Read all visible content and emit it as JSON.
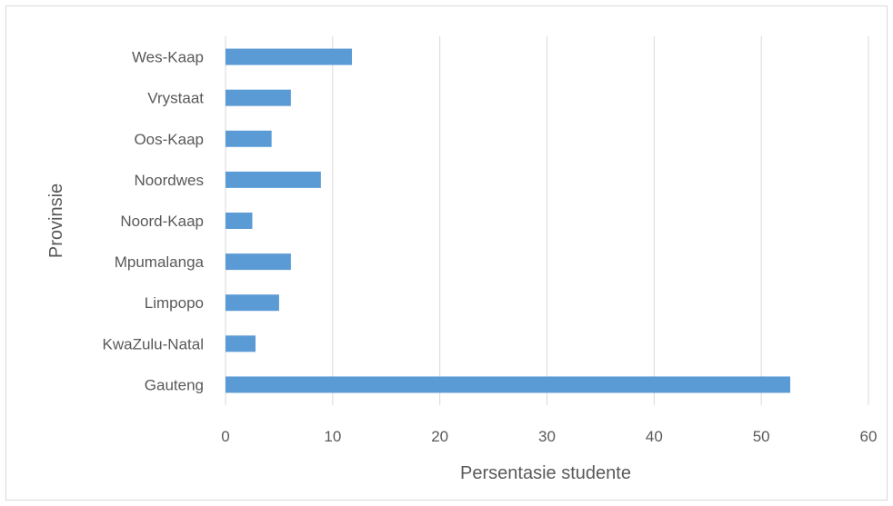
{
  "chart_data": {
    "type": "bar",
    "orientation": "horizontal",
    "categories": [
      "Gauteng",
      "KwaZulu-Natal",
      "Limpopo",
      "Mpumalanga",
      "Noord-Kaap",
      "Noordwes",
      "Oos-Kaap",
      "Vrystaat",
      "Wes-Kaap"
    ],
    "values": [
      52.7,
      2.8,
      5.0,
      6.1,
      2.5,
      8.9,
      4.3,
      6.1,
      11.8
    ],
    "xlabel": "Persentasie studente",
    "ylabel": "Provinsie",
    "xlim": [
      0,
      60
    ],
    "xticks": [
      "0",
      "10",
      "20",
      "30",
      "40",
      "50",
      "60"
    ],
    "grid": "vertical",
    "legend": "none",
    "colors": {
      "bar": "#5b9bd5",
      "grid": "#d9d9d9",
      "text": "#595959"
    }
  }
}
